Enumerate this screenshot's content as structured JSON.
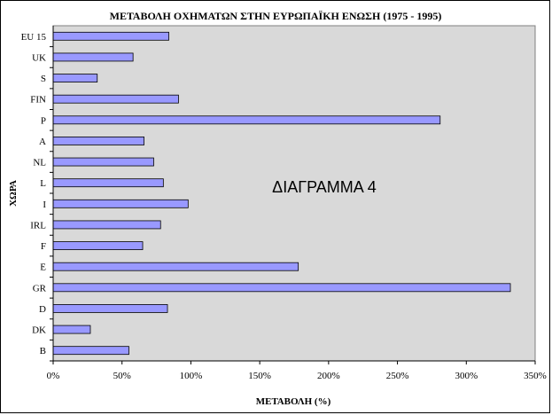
{
  "chart_data": {
    "type": "bar",
    "orientation": "horizontal",
    "title": "ΜΕΤΑΒΟΛΗ ΟΧΗΜΑΤΩΝ ΣΤΗΝ ΕΥΡΩΠΑΪΚΗ ΕΝΩΣΗ (1975 - 1995)",
    "xlabel": "ΜΕΤΑΒΟΛΗ (%)",
    "ylabel": "ΧΩΡΑ",
    "annotation": "ΔΙΑΓΡΑΜΜΑ  4",
    "categories": [
      "B",
      "DK",
      "D",
      "GR",
      "E",
      "F",
      "IRL",
      "I",
      "L",
      "NL",
      "A",
      "P",
      "FIN",
      "S",
      "UK",
      "EU 15"
    ],
    "values": [
      55,
      27,
      83,
      332,
      178,
      65,
      78,
      98,
      80,
      73,
      66,
      281,
      91,
      32,
      58,
      84
    ],
    "xlim": [
      0,
      350
    ],
    "xticks": [
      "0%",
      "50%",
      "100%",
      "150%",
      "200%",
      "250%",
      "300%",
      "350%"
    ],
    "grid": false,
    "legend": "none",
    "colors": {
      "bar_fill": "#9999ff",
      "bar_stroke": "#000000",
      "plot_background": "#d9d9d9",
      "text": "#000000"
    }
  }
}
